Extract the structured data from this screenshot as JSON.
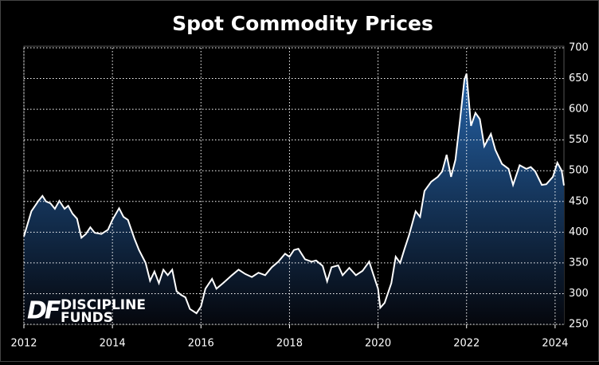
{
  "chart_data": {
    "type": "area",
    "title": "Spot Commodity Prices",
    "annotations": [
      "DF",
      "DISCIPLINE",
      "FUNDS"
    ],
    "x": [
      2012.0,
      2012.17,
      2012.33,
      2012.42,
      2012.5,
      2012.6,
      2012.7,
      2012.8,
      2012.92,
      2013.0,
      2013.1,
      2013.2,
      2013.3,
      2013.4,
      2013.5,
      2013.6,
      2013.75,
      2013.9,
      2014.0,
      2014.15,
      2014.25,
      2014.35,
      2014.5,
      2014.6,
      2014.75,
      2014.85,
      2014.95,
      2015.05,
      2015.15,
      2015.25,
      2015.35,
      2015.45,
      2015.55,
      2015.65,
      2015.75,
      2015.9,
      2016.0,
      2016.1,
      2016.25,
      2016.35,
      2016.5,
      2016.7,
      2016.85,
      2017.0,
      2017.15,
      2017.3,
      2017.45,
      2017.6,
      2017.75,
      2017.9,
      2018.0,
      2018.1,
      2018.2,
      2018.35,
      2018.5,
      2018.6,
      2018.75,
      2018.85,
      2018.95,
      2019.1,
      2019.2,
      2019.35,
      2019.5,
      2019.65,
      2019.8,
      2019.9,
      2020.0,
      2020.05,
      2020.15,
      2020.3,
      2020.4,
      2020.5,
      2020.6,
      2020.7,
      2020.85,
      2020.95,
      2021.05,
      2021.2,
      2021.35,
      2021.45,
      2021.55,
      2021.65,
      2021.75,
      2021.85,
      2021.95,
      2022.0,
      2022.1,
      2022.2,
      2022.3,
      2022.4,
      2022.55,
      2022.65,
      2022.8,
      2022.95,
      2023.05,
      2023.2,
      2023.35,
      2023.45,
      2023.55,
      2023.7,
      2023.8,
      2023.95,
      2024.05,
      2024.15,
      2024.2
    ],
    "values": [
      393,
      434,
      451,
      459,
      450,
      447,
      438,
      451,
      438,
      443,
      430,
      422,
      391,
      397,
      408,
      399,
      397,
      404,
      420,
      439,
      425,
      420,
      389,
      371,
      350,
      321,
      336,
      317,
      339,
      330,
      339,
      304,
      298,
      294,
      275,
      268,
      279,
      308,
      324,
      308,
      317,
      330,
      339,
      332,
      327,
      334,
      330,
      343,
      352,
      365,
      360,
      371,
      373,
      356,
      352,
      354,
      345,
      320,
      343,
      346,
      330,
      342,
      330,
      337,
      352,
      330,
      308,
      277,
      285,
      317,
      360,
      350,
      373,
      395,
      434,
      425,
      467,
      482,
      490,
      499,
      526,
      490,
      518,
      581,
      648,
      658,
      573,
      594,
      584,
      540,
      560,
      534,
      511,
      503,
      477,
      509,
      503,
      506,
      499,
      477,
      478,
      490,
      513,
      500,
      476
    ],
    "color": "#ffffff",
    "fill_color": "#2563a8",
    "xlim": [
      2012,
      2024.2
    ],
    "xticks": [
      2012,
      2014,
      2016,
      2018,
      2020,
      2022,
      2024
    ],
    "ylim": [
      250,
      700
    ],
    "yticks": [
      250,
      300,
      350,
      400,
      450,
      500,
      550,
      600,
      650,
      700
    ],
    "grid": true
  }
}
